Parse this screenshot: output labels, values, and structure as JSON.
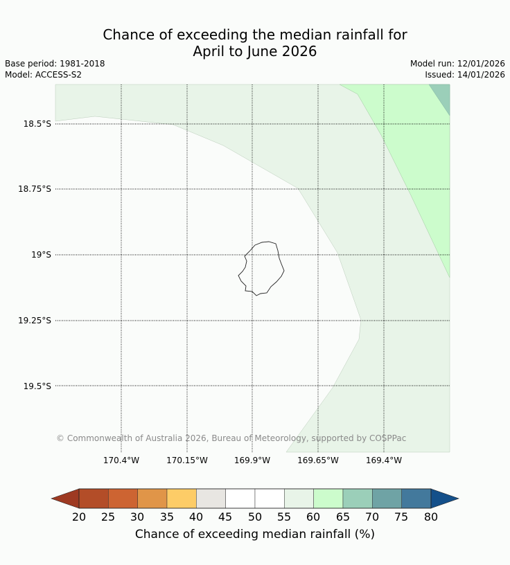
{
  "title": {
    "line1": "Chance of exceeding the median rainfall for",
    "line2": "April to June 2026"
  },
  "meta": {
    "base_period": "Base period: 1981-2018",
    "model": "Model: ACCESS-S2",
    "model_run": "Model run: 12/01/2026",
    "issued": "Issued: 14/01/2026"
  },
  "map": {
    "lat_labels": [
      "18.5°S",
      "18.75°S",
      "19°S",
      "19.25°S",
      "19.5°S"
    ],
    "lon_labels": [
      "170.4°W",
      "170.15°W",
      "169.9°W",
      "169.65°W",
      "169.4°W"
    ],
    "copyright": "© Commonwealth of Australia 2026, Bureau of Meteorology, supported by COSPPac",
    "land_feature": "Niue island outline",
    "region_colors": {
      "50-55": "#fafcfa",
      "55-60": "#e8f4e8",
      "60-65": "#ccfccc",
      "65-70": "#9bcfb9"
    }
  },
  "colorbar": {
    "ticks": [
      "20",
      "25",
      "30",
      "35",
      "40",
      "45",
      "50",
      "55",
      "60",
      "65",
      "70",
      "75",
      "80"
    ],
    "label": "Chance of exceeding median rainfall (%)",
    "under_color": "#9e3a22",
    "over_color": "#14508a",
    "colors": [
      "#b34d28",
      "#cd6432",
      "#e09548",
      "#fdcc67",
      "#e8e6e2",
      "#ffffff",
      "#ffffff",
      "#e8f4e8",
      "#ccfccc",
      "#9bcfb9",
      "#6fa3a5",
      "#43799c"
    ]
  }
}
